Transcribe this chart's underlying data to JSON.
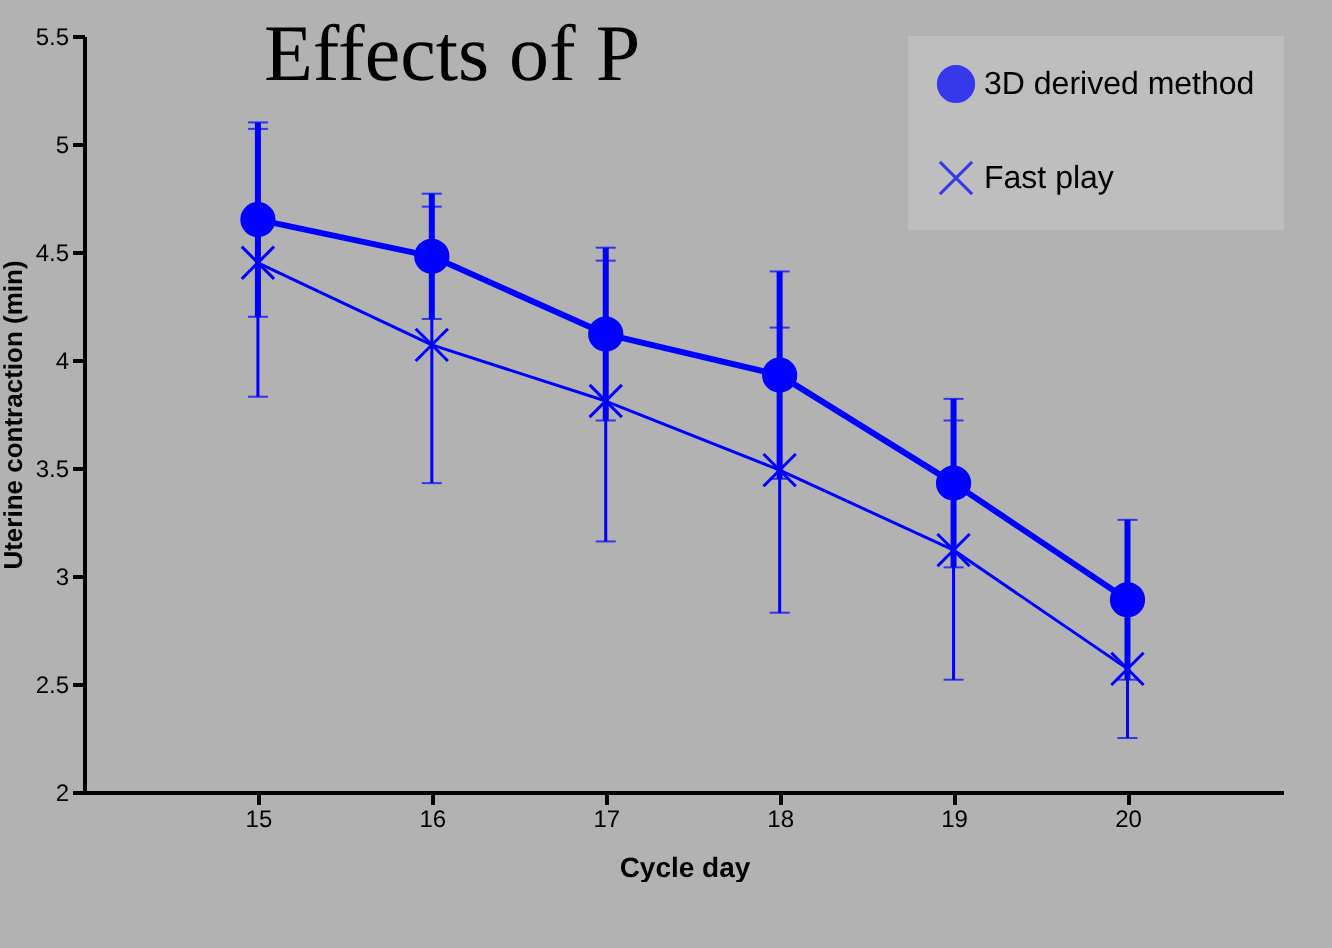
{
  "chart_data": {
    "type": "line",
    "title": "Effects of P",
    "xlabel": "Cycle day",
    "ylabel": "Uterine contraction (min)",
    "x": [
      15,
      16,
      17,
      18,
      19,
      20
    ],
    "series": [
      {
        "name": "3D derived method",
        "color": "#0000ff",
        "marker": "circle",
        "values": [
          4.65,
          4.48,
          4.12,
          3.93,
          3.43,
          2.89
        ],
        "errors": [
          0.45,
          0.29,
          0.4,
          0.48,
          0.39,
          0.37
        ]
      },
      {
        "name": "Fast play",
        "color": "#0000ff",
        "marker": "cross",
        "values": [
          4.45,
          4.07,
          3.81,
          3.49,
          3.12,
          2.57
        ],
        "errors": [
          0.62,
          0.64,
          0.65,
          0.66,
          0.6,
          0.32
        ]
      }
    ],
    "xlim": [
      14,
      20.9
    ],
    "xticks": [
      15,
      16,
      17,
      18,
      19,
      20
    ],
    "ylim": [
      2,
      5.5
    ],
    "yticks": [
      2,
      2.5,
      3,
      3.5,
      4,
      4.5,
      5,
      5.5
    ],
    "grid": false,
    "legend": "top right"
  }
}
